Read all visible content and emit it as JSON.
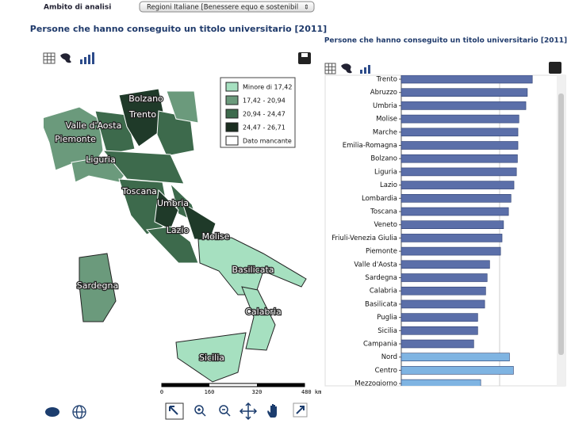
{
  "toolbar": {
    "label": "Ambito di analisi",
    "select": "Regioni Italiane [Benessere equo e sostenibil"
  },
  "map": {
    "title": "Persone che hanno conseguito un titolo universitario [2011]",
    "legend": [
      "Minore di 17,42",
      "17,42 - 20,94",
      "20,94 - 24,47",
      "24,47 - 26,71",
      "Dato mancante"
    ],
    "regions": [
      "Bolzano",
      "Trento",
      "Valle d'Aosta",
      "Piemonte",
      "Liguria",
      "Toscana",
      "Umbria",
      "Lazio",
      "Molise",
      "Basilicata",
      "Sardegna",
      "Calabria",
      "Sicilia"
    ],
    "scale_labels": [
      "0",
      "160",
      "320",
      "480 km"
    ]
  },
  "chart_data": {
    "type": "bar",
    "orientation": "horizontal",
    "title": "Persone che hanno conseguito un titolo universitario [2011]",
    "categories": [
      "Trento",
      "Abruzzo",
      "Umbria",
      "Molise",
      "Marche",
      "Emilia-Romagna",
      "Bolzano",
      "Liguria",
      "Lazio",
      "Lombardia",
      "Toscana",
      "Veneto",
      "Friuli-Venezia Giulia",
      "Piemonte",
      "Valle d'Aosta",
      "Sardegna",
      "Calabria",
      "Basilicata",
      "Puglia",
      "Sicilia",
      "Campania",
      "Nord",
      "Centro",
      "Mezzogiorno"
    ],
    "values": [
      26.4,
      25.4,
      25.1,
      23.7,
      23.5,
      23.5,
      23.4,
      23.2,
      22.7,
      22.1,
      21.6,
      20.6,
      20.3,
      20.0,
      17.8,
      17.3,
      17.0,
      16.8,
      15.4,
      15.4,
      14.6,
      21.8,
      22.6,
      16.0
    ],
    "colors": [
      "#5b6fa9",
      "#5b6fa9",
      "#5b6fa9",
      "#5b6fa9",
      "#5b6fa9",
      "#5b6fa9",
      "#5b6fa9",
      "#5b6fa9",
      "#5b6fa9",
      "#5b6fa9",
      "#5b6fa9",
      "#5b6fa9",
      "#5b6fa9",
      "#5b6fa9",
      "#5b6fa9",
      "#5b6fa9",
      "#5b6fa9",
      "#5b6fa9",
      "#5b6fa9",
      "#5b6fa9",
      "#5b6fa9",
      "#7fb4e2",
      "#7fb4e2",
      "#7fb4e2"
    ],
    "xlim": [
      0,
      31
    ]
  }
}
